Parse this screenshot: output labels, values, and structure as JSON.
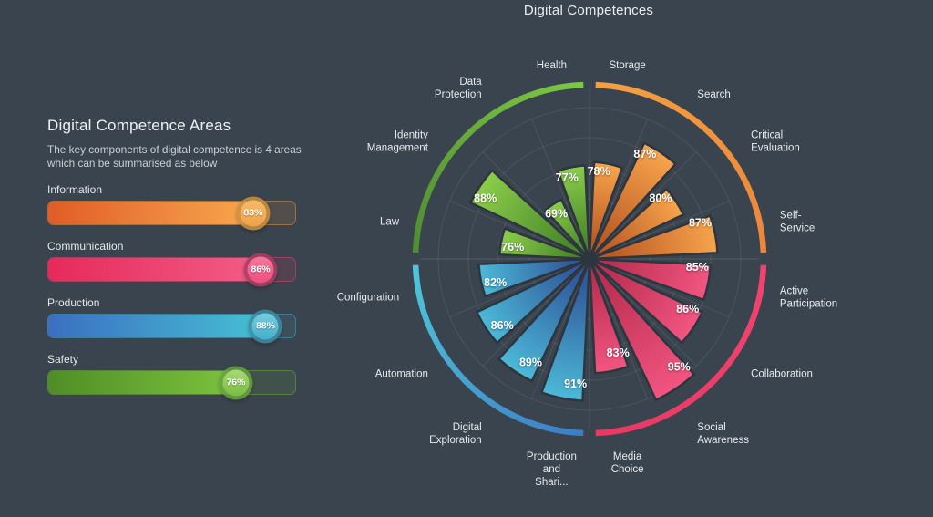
{
  "background_color": "#3a444e",
  "panel": {
    "title": "Digital Competence Areas",
    "subtitle": "The key components of digital competence is 4 areas which can be summarised as below",
    "areas": [
      {
        "label": "Information",
        "value": 83,
        "value_label": "83%",
        "accent": "#f0943f",
        "fill_from": "#e25c28",
        "fill_to": "#f7a84d",
        "knob_from": "#f6bc6a",
        "knob_to": "#f0a04a",
        "knob_ring": "#c9913f"
      },
      {
        "label": "Communication",
        "value": 86,
        "value_label": "86%",
        "accent": "#ee3f6d",
        "fill_from": "#e62a5a",
        "fill_to": "#f25d86",
        "knob_from": "#f4789d",
        "knob_to": "#ee4f7d",
        "knob_ring": "#aa3c63"
      },
      {
        "label": "Production",
        "value": 88,
        "value_label": "88%",
        "accent": "#43a9c9",
        "fill_from": "#3b6fc1",
        "fill_to": "#47c0d4",
        "knob_from": "#74cede",
        "knob_to": "#45aecb",
        "knob_ring": "#3d8ba5"
      },
      {
        "label": "Safety",
        "value": 76,
        "value_label": "76%",
        "accent": "#6db23a",
        "fill_from": "#4f8e26",
        "fill_to": "#7dc23e",
        "knob_from": "#a8d878",
        "knob_to": "#79bd3f",
        "knob_ring": "#67a13d"
      }
    ]
  },
  "chart_data": {
    "type": "bar",
    "layout": "polar",
    "title": "Digital Competences",
    "value_suffix": "%",
    "scale": {
      "min": 50,
      "max": 100
    },
    "sector_angle_deg": 22.5,
    "clockwise_from_top": true,
    "grid": true,
    "groups": [
      {
        "name": "Information",
        "arc_from": "#f49f42",
        "arc_to": "#ec863c",
        "wedge_from": "#bb5a24",
        "wedge_to": "#f7a44c"
      },
      {
        "name": "Communication",
        "arc_from": "#f0446f",
        "arc_to": "#e93863",
        "wedge_from": "#bb2f52",
        "wedge_to": "#f25580"
      },
      {
        "name": "Production",
        "arc_from": "#3d7dc4",
        "arc_to": "#4fc6da",
        "wedge_from": "#305a9b",
        "wedge_to": "#4cb9d8"
      },
      {
        "name": "Safety",
        "arc_from": "#4f8c33",
        "arc_to": "#7dc844",
        "wedge_from": "#48862a",
        "wedge_to": "#8bcd4a"
      }
    ],
    "points": [
      {
        "label": "Storage",
        "label_lines": [
          "Storage"
        ],
        "value": 78,
        "value_label": "78%",
        "group": "Information"
      },
      {
        "label": "Search",
        "label_lines": [
          "Search"
        ],
        "value": 87,
        "value_label": "87%",
        "group": "Information"
      },
      {
        "label": "Critical Evaluation",
        "label_lines": [
          "Critical",
          "Evaluation"
        ],
        "value": 80,
        "value_label": "80%",
        "group": "Information"
      },
      {
        "label": "Self-Service",
        "label_lines": [
          "Self-",
          "Service"
        ],
        "value": 87,
        "value_label": "87%",
        "group": "Information"
      },
      {
        "label": "Active Participation",
        "label_lines": [
          "Active",
          "Participation"
        ],
        "value": 85,
        "value_label": "85%",
        "group": "Communication"
      },
      {
        "label": "Collaboration",
        "label_lines": [
          "Collaboration"
        ],
        "value": 86,
        "value_label": "86%",
        "group": "Communication"
      },
      {
        "label": "Social Awareness",
        "label_lines": [
          "Social",
          "Awareness"
        ],
        "value": 95,
        "value_label": "95%",
        "group": "Communication"
      },
      {
        "label": "Media Choice",
        "label_lines": [
          "Media",
          "Choice"
        ],
        "value": 83,
        "value_label": "83%",
        "group": "Communication"
      },
      {
        "label": "Production and Shari...",
        "label_lines": [
          "Production",
          "and",
          "Shari..."
        ],
        "value": 91,
        "value_label": "91%",
        "group": "Production"
      },
      {
        "label": "Digital Exploration",
        "label_lines": [
          "Digital",
          "Exploration"
        ],
        "value": 89,
        "value_label": "89%",
        "group": "Production"
      },
      {
        "label": "Automation",
        "label_lines": [
          "Automation"
        ],
        "value": 86,
        "value_label": "86%",
        "group": "Production"
      },
      {
        "label": "Configuration",
        "label_lines": [
          "Configuration"
        ],
        "value": 82,
        "value_label": "82%",
        "group": "Production"
      },
      {
        "label": "Law",
        "label_lines": [
          "Law"
        ],
        "value": 76,
        "value_label": "76%",
        "group": "Safety"
      },
      {
        "label": "Identity Management",
        "label_lines": [
          "Identity",
          "Management"
        ],
        "value": 88,
        "value_label": "88%",
        "group": "Safety"
      },
      {
        "label": "Data Protection",
        "label_lines": [
          "Data",
          "Protection"
        ],
        "value": 69,
        "value_label": "69%",
        "group": "Safety"
      },
      {
        "label": "Health",
        "label_lines": [
          "Health"
        ],
        "value": 77,
        "value_label": "77%",
        "group": "Safety"
      }
    ]
  }
}
